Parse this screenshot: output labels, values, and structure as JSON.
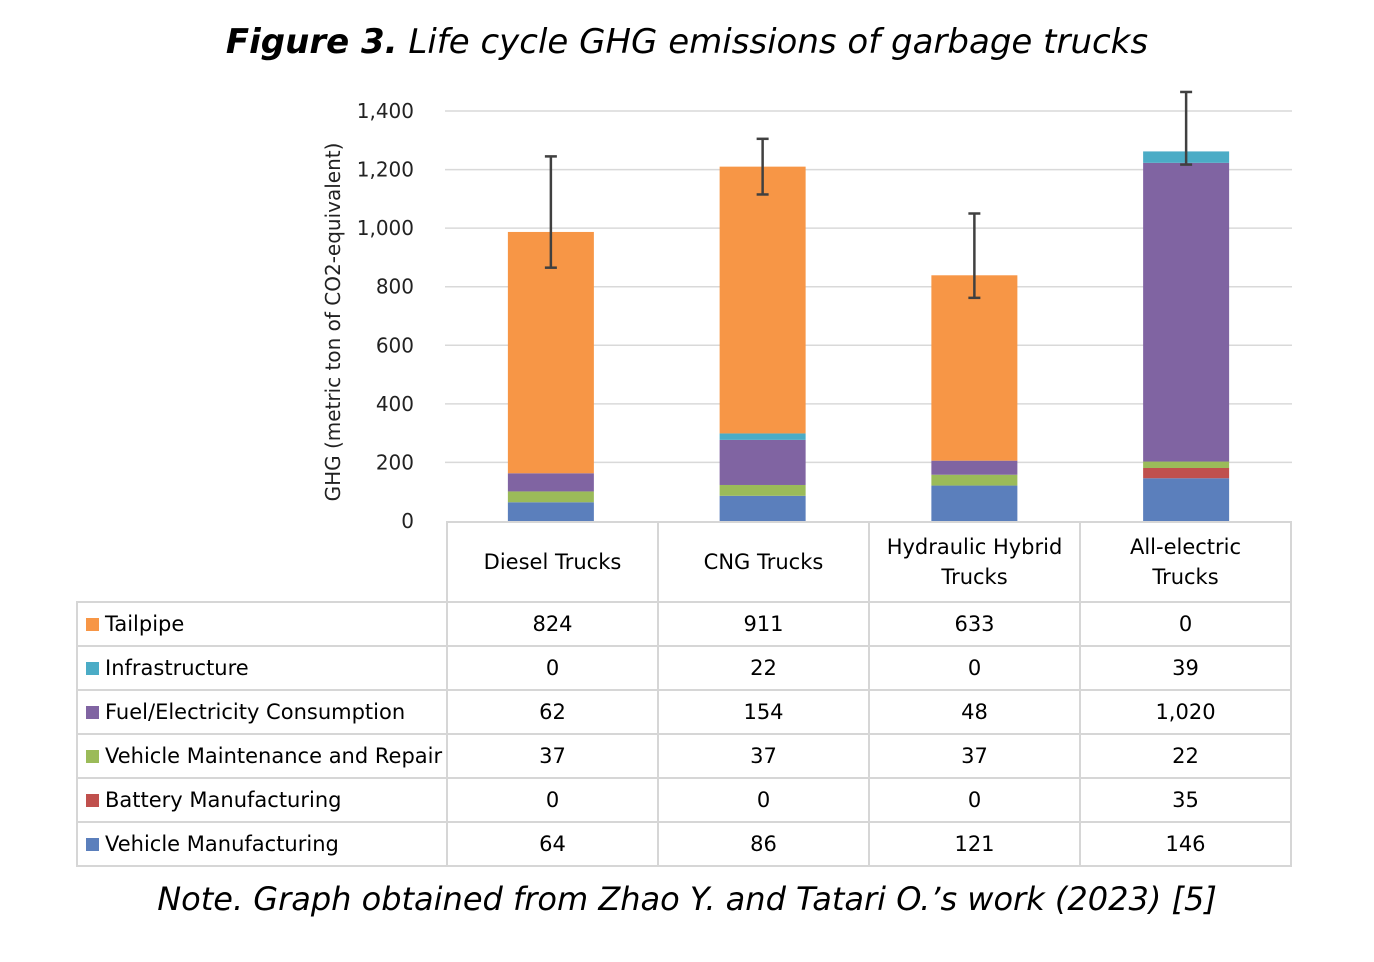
{
  "figure": {
    "title_bold": "Figure 3.",
    "title_rest": " Life cycle GHG emissions of garbage trucks",
    "note": "Note. Graph obtained from Zhao Y. and Tatari O.’s work (2023) [5]"
  },
  "chart_data": {
    "type": "bar",
    "stacked": true,
    "ylabel": "GHG (metric ton  of CO2-equivalent)",
    "ylim": [
      0,
      1400
    ],
    "yticks": [
      0,
      200,
      400,
      600,
      800,
      1000,
      1200,
      1400
    ],
    "ytick_labels": [
      "0",
      "200",
      "400",
      "600",
      "800",
      "1,000",
      "1,200",
      "1,400"
    ],
    "grid": true,
    "categories": [
      "Diesel Trucks",
      "CNG Trucks",
      "Hydraulic Hybrid Trucks",
      "All-electric Trucks"
    ],
    "category_labels": [
      [
        "Diesel Trucks"
      ],
      [
        "CNG Trucks"
      ],
      [
        "Hydraulic Hybrid",
        "Trucks"
      ],
      [
        "All-electric",
        "Trucks"
      ]
    ],
    "series": [
      {
        "name": "Vehicle Manufacturing",
        "color": "#5b7fbc",
        "values": [
          64,
          86,
          121,
          146
        ],
        "labels": [
          "64",
          "86",
          "121",
          "146"
        ]
      },
      {
        "name": "Battery Manufacturing",
        "color": "#c0504d",
        "values": [
          0,
          0,
          0,
          35
        ],
        "labels": [
          "0",
          "0",
          "0",
          "35"
        ]
      },
      {
        "name": "Vehicle Maintenance and Repair",
        "color": "#9bbb59",
        "values": [
          37,
          37,
          37,
          22
        ],
        "labels": [
          "37",
          "37",
          "37",
          "22"
        ]
      },
      {
        "name": "Fuel/Electricity Consumption",
        "color": "#8064a2",
        "values": [
          62,
          154,
          48,
          1020
        ],
        "labels": [
          "62",
          "154",
          "48",
          "1,020"
        ]
      },
      {
        "name": "Infrastructure",
        "color": "#4bacc6",
        "values": [
          0,
          22,
          0,
          39
        ],
        "labels": [
          "0",
          "22",
          "0",
          "39"
        ]
      },
      {
        "name": "Tailpipe",
        "color": "#f79646",
        "values": [
          824,
          911,
          633,
          0
        ],
        "labels": [
          "824",
          "911",
          "633",
          "0"
        ]
      }
    ],
    "error_bars": [
      {
        "low": 865,
        "high": 1245
      },
      {
        "low": 1115,
        "high": 1305
      },
      {
        "low": 762,
        "high": 1050
      },
      {
        "low": 1217,
        "high": 1465
      }
    ],
    "table_order": [
      "Tailpipe",
      "Infrastructure",
      "Fuel/Electricity Consumption",
      "Vehicle Maintenance and Repair",
      "Battery Manufacturing",
      "Vehicle Manufacturing"
    ]
  }
}
